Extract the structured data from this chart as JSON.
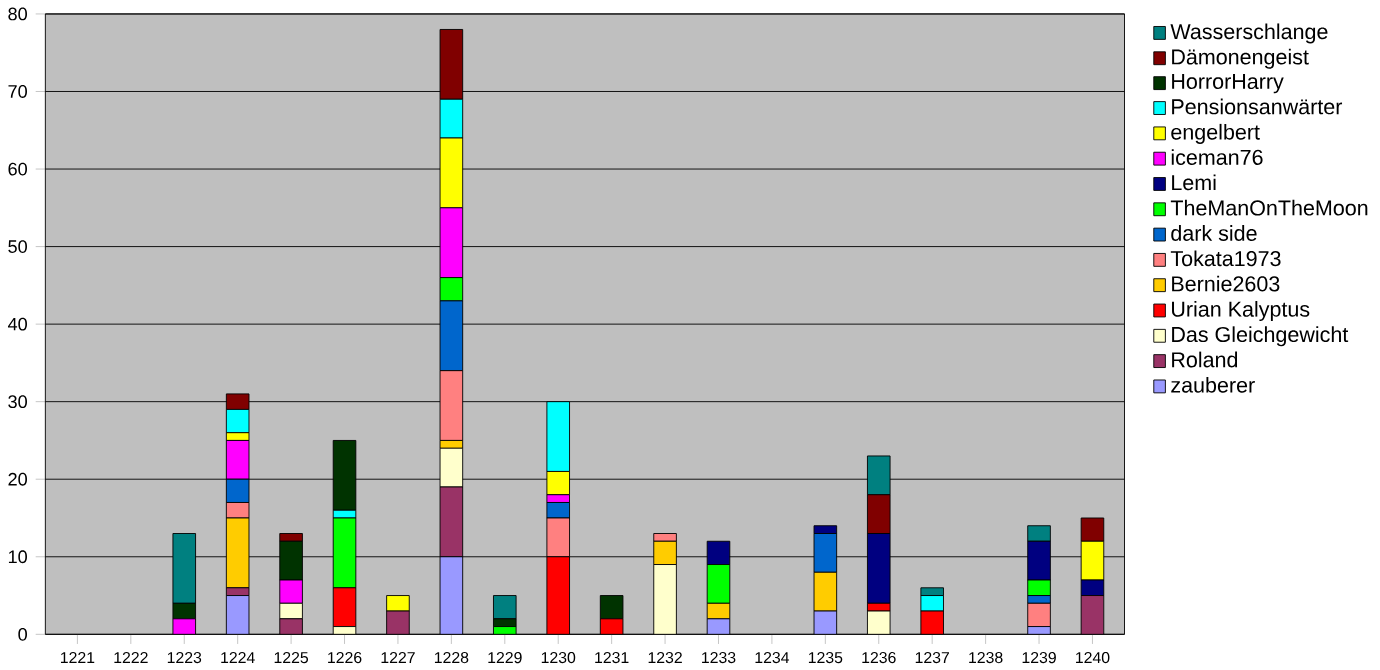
{
  "chart_data": {
    "type": "bar",
    "stacked": true,
    "grid": "y",
    "legend": "right",
    "categories": [
      "1221",
      "1222",
      "1223",
      "1224",
      "1225",
      "1226",
      "1227",
      "1228",
      "1229",
      "1230",
      "1231",
      "1232",
      "1233",
      "1234",
      "1235",
      "1236",
      "1237",
      "1238",
      "1239",
      "1240"
    ],
    "ylim": [
      0,
      80
    ],
    "yticks": [
      0,
      10,
      20,
      30,
      40,
      50,
      60,
      70,
      80
    ],
    "series": [
      {
        "name": "zauberer",
        "color": "#9999ff",
        "values": [
          null,
          null,
          null,
          5,
          null,
          null,
          null,
          10,
          null,
          null,
          null,
          null,
          2,
          null,
          3,
          null,
          null,
          null,
          1,
          null
        ]
      },
      {
        "name": "Roland",
        "color": "#993366",
        "values": [
          null,
          null,
          null,
          1,
          2,
          null,
          3,
          9,
          null,
          null,
          null,
          null,
          null,
          null,
          null,
          null,
          null,
          null,
          null,
          5
        ]
      },
      {
        "name": "Das Gleichgewicht",
        "color": "#ffffcc",
        "values": [
          null,
          null,
          null,
          null,
          2,
          1,
          null,
          5,
          null,
          null,
          null,
          9,
          null,
          null,
          null,
          3,
          null,
          null,
          null,
          null
        ]
      },
      {
        "name": "Urian Kalyptus",
        "color": "#ff0000",
        "values": [
          null,
          null,
          null,
          null,
          null,
          5,
          null,
          null,
          null,
          10,
          2,
          null,
          null,
          null,
          null,
          1,
          3,
          null,
          null,
          null
        ]
      },
      {
        "name": "Bernie2603",
        "color": "#ffcc00",
        "values": [
          null,
          null,
          null,
          9,
          null,
          null,
          null,
          1,
          null,
          null,
          null,
          3,
          2,
          null,
          5,
          null,
          null,
          null,
          null,
          null
        ]
      },
      {
        "name": "Tokata1973",
        "color": "#ff8080",
        "values": [
          null,
          null,
          null,
          2,
          null,
          null,
          null,
          9,
          null,
          5,
          null,
          1,
          null,
          null,
          null,
          null,
          null,
          null,
          3,
          null
        ]
      },
      {
        "name": "dark side",
        "color": "#0066cc",
        "values": [
          null,
          null,
          null,
          3,
          null,
          null,
          null,
          9,
          null,
          2,
          null,
          null,
          null,
          null,
          5,
          null,
          null,
          null,
          1,
          null
        ]
      },
      {
        "name": "TheManOnTheMoon",
        "color": "#00ff00",
        "values": [
          null,
          null,
          null,
          null,
          null,
          9,
          null,
          3,
          1,
          null,
          null,
          null,
          5,
          null,
          null,
          null,
          null,
          null,
          2,
          null
        ]
      },
      {
        "name": "Lemi",
        "color": "#000080",
        "values": [
          null,
          null,
          null,
          null,
          null,
          null,
          null,
          null,
          null,
          null,
          null,
          null,
          3,
          null,
          1,
          9,
          null,
          null,
          5,
          2
        ]
      },
      {
        "name": "iceman76",
        "color": "#ff00ff",
        "values": [
          null,
          null,
          2,
          5,
          3,
          null,
          null,
          9,
          null,
          1,
          null,
          null,
          null,
          null,
          null,
          null,
          null,
          null,
          null,
          null
        ]
      },
      {
        "name": "engelbert",
        "color": "#ffff00",
        "values": [
          null,
          null,
          null,
          1,
          null,
          null,
          2,
          9,
          null,
          3,
          null,
          null,
          null,
          null,
          null,
          null,
          null,
          null,
          null,
          5
        ]
      },
      {
        "name": "Pensionsanwärter",
        "color": "#00ffff",
        "values": [
          null,
          null,
          null,
          3,
          null,
          1,
          null,
          5,
          null,
          9,
          null,
          null,
          null,
          null,
          null,
          null,
          2,
          null,
          null,
          null
        ]
      },
      {
        "name": "HorrorHarry",
        "color": "#003300",
        "values": [
          null,
          null,
          2,
          null,
          5,
          9,
          null,
          null,
          1,
          null,
          3,
          null,
          null,
          null,
          null,
          null,
          null,
          null,
          null,
          null
        ]
      },
      {
        "name": "Dämonengeist",
        "color": "#800000",
        "values": [
          null,
          null,
          null,
          2,
          1,
          null,
          null,
          9,
          null,
          null,
          null,
          null,
          null,
          null,
          null,
          5,
          null,
          null,
          null,
          3
        ]
      },
      {
        "name": "Wasserschlange",
        "color": "#008080",
        "values": [
          null,
          null,
          9,
          null,
          null,
          null,
          null,
          null,
          3,
          null,
          null,
          null,
          null,
          null,
          null,
          5,
          1,
          null,
          2,
          null
        ]
      }
    ]
  }
}
